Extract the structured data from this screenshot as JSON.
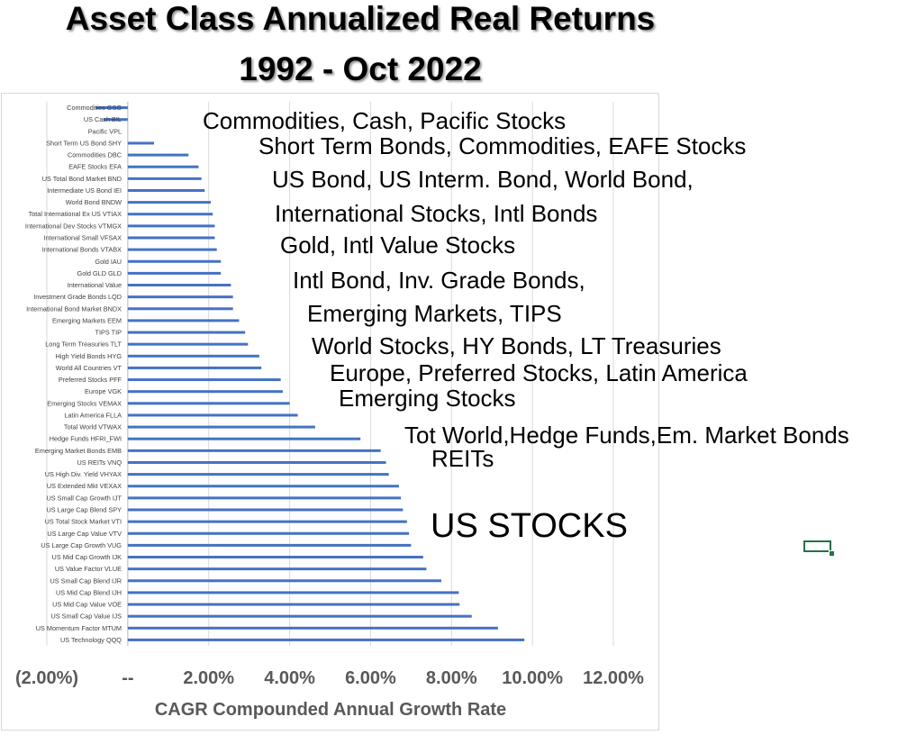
{
  "chart_data": {
    "type": "bar",
    "orientation": "horizontal",
    "title": "Asset Class Annualized Real Returns",
    "subtitle": "1992 - Oct 2022",
    "xlabel": "CAGR Compounded Annual Growth Rate",
    "ylabel": "",
    "xlim": [
      -2,
      12
    ],
    "x_ticks": [
      -2,
      0,
      2,
      4,
      6,
      8,
      10,
      12
    ],
    "x_tick_labels": [
      "(2.00%)",
      "--",
      "2.00%",
      "4.00%",
      "6.00%",
      "8.00%",
      "10.00%",
      "12.00%"
    ],
    "grid": true,
    "bar_color": "#4472c4",
    "categories": [
      "Commodities GSG",
      "US Cash BIL",
      "Pacific VPL",
      "Short Term US Bond SHY",
      "Commodities DBC",
      "EAFE Stocks EFA",
      "US Total Bond Market BND",
      "Intermediate US Bond IEI",
      "World Bond BNDW",
      "Total International Ex US VTIAX",
      "International Dev Stocks VTMGX",
      "International Small VFSAX",
      "International  Bonds VTABX",
      "Gold IAU",
      "Gold GLD GLD",
      "International Value",
      "Investment Grade Bonds LQD",
      "International Bond Market BNDX",
      "Emerging Markets EEM",
      "TIPS TIP",
      "Long Term Treasuries TLT",
      "High Yield Bonds HYG",
      "World All Countries VT",
      "Preferred Stocks PFF",
      "Europe VGK",
      "Emerging Stocks VEMAX",
      "Latin America FLLA",
      "Total World VTWAX",
      "Hedge Funds HFRI_FWI",
      "Emerging Market Bonds EMB",
      "US REITs VNQ",
      "US High Div. Yield VHYAX",
      "US Extended Mkt VEXAX",
      "US Small Cap Growth IJT",
      "US Large Cap Blend SPY",
      "US Total Stock Market VTI",
      "US Large Cap Value VTV",
      "US Large Cap Growth VUG",
      "US Mid Cap Growth IJK",
      "US Value Factor VLUE",
      "US Small Cap Blend IJR",
      "US Mid Cap Blend IJH",
      "US Mid Cap Value VOE",
      "US Small Cap Value IJS",
      "US Momentum Factor MTUM",
      "US Technology QQQ"
    ],
    "values": [
      -0.8,
      -0.6,
      0.0,
      0.65,
      1.5,
      1.75,
      1.82,
      1.9,
      2.05,
      2.1,
      2.15,
      2.15,
      2.2,
      2.3,
      2.3,
      2.55,
      2.6,
      2.6,
      2.75,
      2.9,
      2.97,
      3.25,
      3.3,
      3.78,
      3.83,
      4.0,
      4.2,
      4.63,
      5.75,
      6.25,
      6.38,
      6.45,
      6.7,
      6.75,
      6.8,
      6.9,
      6.95,
      7.0,
      7.3,
      7.38,
      7.75,
      8.18,
      8.2,
      8.5,
      9.15,
      9.8
    ]
  },
  "annotations": [
    "Commodities, Cash, Pacific Stocks",
    "Short Term Bonds, Commodities, EAFE Stocks",
    "US Bond, US Interm. Bond,  World Bond,",
    "International Stocks, Intl Bonds",
    "Gold, Intl Value Stocks",
    "Intl Bond, Inv. Grade Bonds,",
    "Emerging Markets, TIPS",
    "World Stocks, HY Bonds, LT Treasuries",
    "Europe, Preferred Stocks, Latin America",
    "Emerging Stocks",
    "Tot World,Hedge Funds,Em. Market Bonds",
    "REITs",
    "US STOCKS"
  ]
}
